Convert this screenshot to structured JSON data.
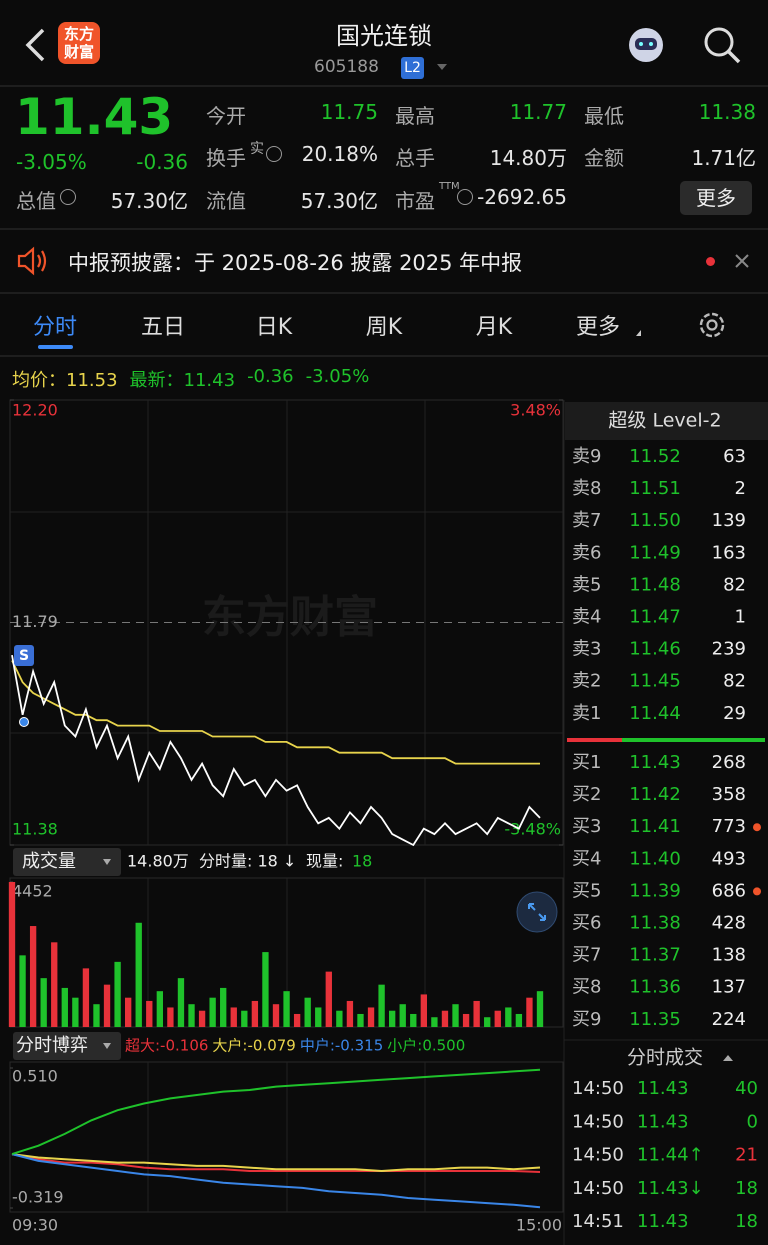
{
  "header": {
    "title": "国光连锁",
    "code": "605188",
    "badge": "L2",
    "logo": [
      "东方",
      "财富"
    ]
  },
  "quote": {
    "price": "11.43",
    "change_pct": "-3.05%",
    "change": "-0.36",
    "more": "更多",
    "rows": [
      [
        {
          "label": "今开",
          "value": "11.75",
          "color": "#1fc22b"
        },
        {
          "label": "最高",
          "value": "11.77",
          "color": "#1fc22b"
        },
        {
          "label": "最低",
          "value": "11.38",
          "color": "#1fc22b"
        }
      ],
      [
        {
          "label": "换手",
          "sup": "实",
          "value": "20.18%",
          "color": "#e6e6e6"
        },
        {
          "label": "总手",
          "value": "14.80万",
          "color": "#e6e6e6"
        },
        {
          "label": "金额",
          "value": "1.71亿",
          "color": "#e6e6e6"
        }
      ],
      [
        {
          "label": "总值",
          "value": "57.30亿",
          "color": "#e6e6e6"
        },
        {
          "label": "流值",
          "value": "57.30亿",
          "color": "#e6e6e6"
        },
        {
          "label": "市盈",
          "sup": "TTM",
          "value": "-2692.65",
          "color": "#e6e6e6"
        }
      ]
    ]
  },
  "notice": "中报预披露：于 2025-08-26 披露 2025 年中报",
  "tabs": [
    "分时",
    "五日",
    "日K",
    "周K",
    "月K",
    "更多"
  ],
  "info": [
    {
      "text": "均价：11.53",
      "color": "#e8d44c"
    },
    {
      "text": "最新：11.43",
      "color": "#1fc22b"
    },
    {
      "text": "-0.36",
      "color": "#1fc22b"
    },
    {
      "text": "-3.05%",
      "color": "#1fc22b"
    }
  ],
  "watermark": "东方财富",
  "price_chart": {
    "type": "line",
    "ylim": [
      11.38,
      12.2
    ],
    "yticks": [
      {
        "value": 12.2,
        "label": "12.20",
        "color": "#e8323a"
      },
      {
        "value": 11.79,
        "label": "11.79",
        "color": "#aaaaaa"
      },
      {
        "value": 11.38,
        "label": "11.38",
        "color": "#1fc22b"
      }
    ],
    "y2lim": [
      -3.48,
      3.48
    ],
    "y2ticks": [
      {
        "value": 3.48,
        "label": "3.48%",
        "color": "#e8323a"
      },
      {
        "value": -3.48,
        "label": "-3.48%",
        "color": "#1fc22b"
      }
    ],
    "series": [
      {
        "name": "price",
        "color": "#ffffff",
        "values": [
          11.73,
          11.62,
          11.7,
          11.64,
          11.68,
          11.6,
          11.58,
          11.63,
          11.56,
          11.6,
          11.54,
          11.58,
          11.5,
          11.55,
          11.52,
          11.57,
          11.54,
          11.5,
          11.53,
          11.49,
          11.47,
          11.52,
          11.49,
          11.5,
          11.47,
          11.5,
          11.48,
          11.49,
          11.45,
          11.42,
          11.43,
          11.41,
          11.44,
          11.42,
          11.45,
          11.43,
          11.4,
          11.39,
          11.38,
          11.41,
          11.4,
          11.42,
          11.4,
          11.41,
          11.42,
          11.4,
          11.43,
          11.42,
          11.41,
          11.45,
          11.43
        ]
      },
      {
        "name": "average",
        "color": "#e8d44c",
        "values": [
          11.72,
          11.68,
          11.66,
          11.65,
          11.64,
          11.63,
          11.62,
          11.62,
          11.61,
          11.61,
          11.6,
          11.6,
          11.6,
          11.6,
          11.59,
          11.59,
          11.59,
          11.59,
          11.59,
          11.58,
          11.58,
          11.58,
          11.58,
          11.58,
          11.57,
          11.57,
          11.57,
          11.56,
          11.56,
          11.56,
          11.56,
          11.55,
          11.55,
          11.55,
          11.55,
          11.55,
          11.54,
          11.54,
          11.54,
          11.54,
          11.54,
          11.54,
          11.53,
          11.53,
          11.53,
          11.53,
          11.53,
          11.53,
          11.53,
          11.53,
          11.53
        ]
      }
    ]
  },
  "volume_chart": {
    "type": "bar",
    "title": "成交量",
    "total": "14.80万",
    "period": "分时量: 18 ↓",
    "current_label": "现量:",
    "current": "18",
    "ylim": [
      0,
      4452
    ],
    "yticks": [
      4452
    ],
    "values": [
      4452,
      2200,
      3100,
      1500,
      2600,
      1200,
      900,
      1800,
      700,
      1300,
      2000,
      900,
      3200,
      800,
      1100,
      600,
      1500,
      700,
      500,
      900,
      1200,
      600,
      500,
      800,
      2300,
      700,
      1100,
      400,
      900,
      600,
      1700,
      500,
      800,
      400,
      600,
      1300,
      500,
      700,
      400,
      1000,
      300,
      500,
      700,
      400,
      800,
      300,
      500,
      600,
      400,
      900,
      1100
    ]
  },
  "flow_chart": {
    "type": "line",
    "title": "分时博弈",
    "ylim": [
      -0.319,
      0.51
    ],
    "yticks": [
      {
        "value": 0.51,
        "label": "0.510"
      },
      -0.319
    ],
    "xticks": [
      "09:30",
      "15:00"
    ],
    "series": [
      {
        "name": "超大:-0.106",
        "color": "#e8323a",
        "values": [
          0.0,
          -0.03,
          -0.05,
          -0.05,
          -0.06,
          -0.08,
          -0.09,
          -0.09,
          -0.09,
          -0.1,
          -0.1,
          -0.1,
          -0.1,
          -0.1,
          -0.1,
          -0.1,
          -0.1,
          -0.1,
          -0.1,
          -0.1,
          -0.106
        ]
      },
      {
        "name": "大户:-0.079",
        "color": "#e8d44c",
        "values": [
          0.0,
          -0.02,
          -0.03,
          -0.04,
          -0.05,
          -0.05,
          -0.06,
          -0.07,
          -0.07,
          -0.08,
          -0.09,
          -0.09,
          -0.09,
          -0.09,
          -0.1,
          -0.09,
          -0.09,
          -0.08,
          -0.08,
          -0.09,
          -0.079
        ]
      },
      {
        "name": "中户:-0.315",
        "color": "#3a86e8",
        "values": [
          0.0,
          -0.04,
          -0.06,
          -0.08,
          -0.1,
          -0.12,
          -0.13,
          -0.15,
          -0.17,
          -0.18,
          -0.19,
          -0.2,
          -0.22,
          -0.23,
          -0.24,
          -0.26,
          -0.27,
          -0.28,
          -0.29,
          -0.3,
          -0.315
        ]
      },
      {
        "name": "小户:0.500",
        "color": "#1fc22b",
        "values": [
          0.0,
          0.05,
          0.12,
          0.2,
          0.26,
          0.3,
          0.33,
          0.35,
          0.37,
          0.38,
          0.4,
          0.41,
          0.42,
          0.43,
          0.44,
          0.45,
          0.46,
          0.47,
          0.48,
          0.49,
          0.5
        ]
      }
    ]
  },
  "order_book": {
    "title": "超级 Level-2",
    "asks": [
      [
        "卖9",
        "11.52",
        "63"
      ],
      [
        "卖8",
        "11.51",
        "2"
      ],
      [
        "卖7",
        "11.50",
        "139"
      ],
      [
        "卖6",
        "11.49",
        "163"
      ],
      [
        "卖5",
        "11.48",
        "82"
      ],
      [
        "卖4",
        "11.47",
        "1"
      ],
      [
        "卖3",
        "11.46",
        "239"
      ],
      [
        "卖2",
        "11.45",
        "82"
      ],
      [
        "卖1",
        "11.44",
        "29"
      ]
    ],
    "bids": [
      [
        "买1",
        "11.43",
        "268"
      ],
      [
        "买2",
        "11.42",
        "358"
      ],
      [
        "买3",
        "11.41",
        "773"
      ],
      [
        "买4",
        "11.40",
        "493"
      ],
      [
        "买5",
        "11.39",
        "686"
      ],
      [
        "买6",
        "11.38",
        "428"
      ],
      [
        "买7",
        "11.37",
        "138"
      ],
      [
        "买8",
        "11.36",
        "137"
      ],
      [
        "买9",
        "11.35",
        "224"
      ]
    ],
    "marked_bids": [
      2,
      4
    ]
  },
  "trades": {
    "title": "分时成交",
    "rows": [
      {
        "time": "14:50",
        "price": "11.43",
        "volume": "40",
        "color": "#1fc22b"
      },
      {
        "time": "14:50",
        "price": "11.43",
        "volume": "0",
        "color": "#1fc22b"
      },
      {
        "time": "14:50",
        "price": "11.44↑",
        "volume": "21",
        "color": "#e8323a"
      },
      {
        "time": "14:50",
        "price": "11.43↓",
        "volume": "18",
        "color": "#1fc22b"
      },
      {
        "time": "14:51",
        "price": "11.43",
        "volume": "18",
        "color": "#1fc22b"
      }
    ]
  }
}
